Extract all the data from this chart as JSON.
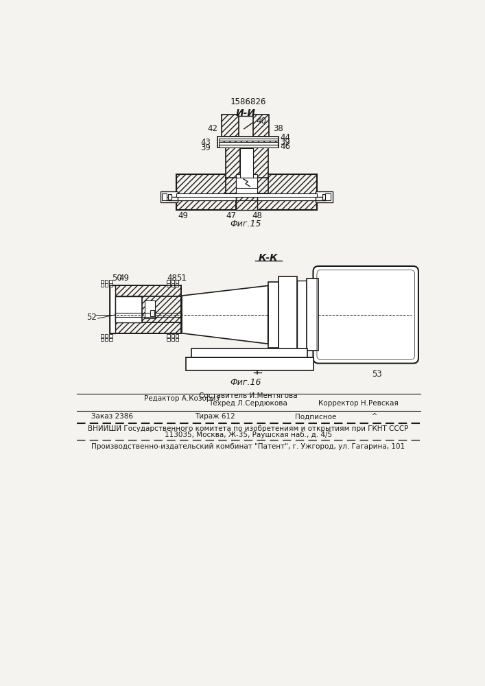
{
  "patent_number": "1586826",
  "fig15_label": "Фиг.15",
  "fig16_label": "Фиг.16",
  "section_ii": "И-И",
  "section_kk": "К-К",
  "bg_color": "#f5f3ef",
  "line_color": "#1a1a1a",
  "footer_line1_left": "Редактор А.Козориз",
  "footer_line1_center": "Составитель И.Ментягова",
  "footer_line2_center": "Техред Л.Сердюкова",
  "footer_line2_right": "Корректор Н.Ревская",
  "footer_zakaz": "Заказ 2386",
  "footer_tirazh": "Тираж 612",
  "footer_podpisnoe": "Подписное",
  "footer_vniishi": "ВНИИШИ Государственного комитета по изобретениям и открытиям при ГКНТ СССР",
  "footer_address": "113035, Москва, Ж-35, Раушская наб., д. 4/5",
  "footer_proizv": "Производственно-издательский комбинат \"Патент\", г. Ужгород, ул. Гагарина, 101"
}
